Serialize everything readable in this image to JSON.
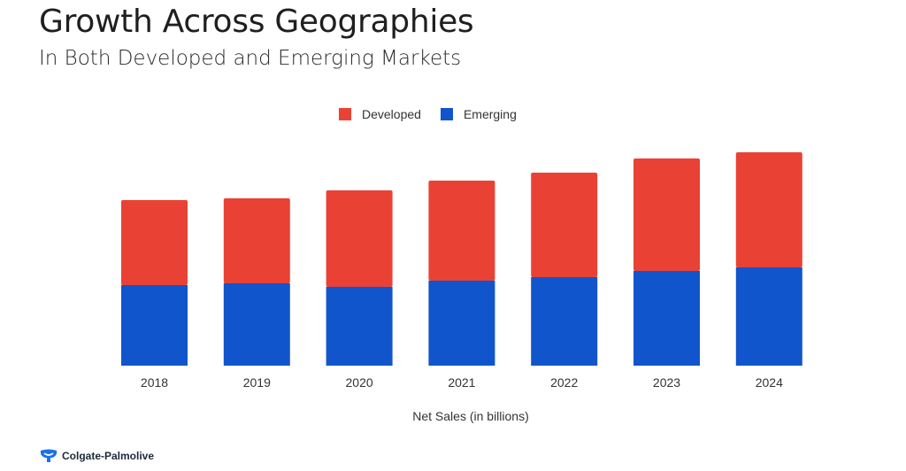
{
  "header": {
    "title": "Growth Across Geographies",
    "subtitle": "In Both Developed and Emerging Markets"
  },
  "footer": {
    "brand": "Colgate-Palmolive",
    "brand_icon": "colgate-palmolive-logo-icon",
    "brand_color": "#1a73e8"
  },
  "chart_data": {
    "type": "bar",
    "stacked": true,
    "title": "Growth Across Geographies",
    "subtitle": "In Both Developed and Emerging Markets",
    "xlabel": "Net Sales (in billions)",
    "ylabel": "",
    "categories": [
      "2018",
      "2019",
      "2020",
      "2021",
      "2022",
      "2023",
      "2024"
    ],
    "series": [
      {
        "name": "Emerging",
        "color": "#1155cc",
        "values": [
          9.1,
          9.3,
          8.9,
          9.6,
          10.0,
          10.7,
          11.1
        ]
      },
      {
        "name": "Developed",
        "color": "#e94235",
        "values": [
          9.6,
          9.6,
          10.9,
          11.3,
          11.8,
          12.7,
          13.0
        ]
      }
    ],
    "legend": {
      "position": "top-center",
      "order": [
        "Developed",
        "Emerging"
      ]
    },
    "ylim": [
      0,
      25
    ],
    "grid": false,
    "y_axis_visible": false
  }
}
